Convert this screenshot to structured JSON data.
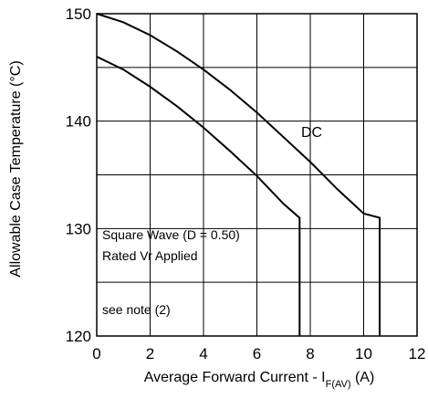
{
  "chart_data": {
    "type": "line",
    "xlabel_main": "Average Forward Current - I",
    "xlabel_sub": "F(AV)",
    "xlabel_unit": " (A)",
    "ylabel": "Allowable Case Temperature (°C)",
    "xlim": [
      0,
      12
    ],
    "ylim": [
      120,
      150
    ],
    "xticks": [
      0,
      2,
      4,
      6,
      8,
      10,
      12
    ],
    "yticks": [
      120,
      130,
      140,
      150
    ],
    "ygrid": [
      120,
      125,
      130,
      135,
      140,
      145,
      150
    ],
    "grid": true,
    "series": [
      {
        "name": "DC",
        "x": [
          0,
          1,
          2,
          3,
          4,
          5,
          6,
          7,
          8,
          9,
          10,
          10.6,
          10.6
        ],
        "y": [
          150,
          149.2,
          148,
          146.5,
          144.8,
          142.9,
          140.8,
          138.5,
          136.2,
          133.7,
          131.4,
          131,
          120
        ]
      },
      {
        "name": "",
        "x": [
          0,
          1,
          2,
          3,
          4,
          5,
          6,
          7,
          7.6,
          7.6
        ],
        "y": [
          146,
          144.8,
          143.2,
          141.4,
          139.4,
          137.2,
          134.9,
          132.3,
          131,
          120
        ]
      }
    ],
    "annotations": {
      "dc_label": "DC",
      "square_wave": "Square Wave (D = 0.50)",
      "rated": "Rated Vr Applied",
      "note": "see note (2)"
    }
  }
}
